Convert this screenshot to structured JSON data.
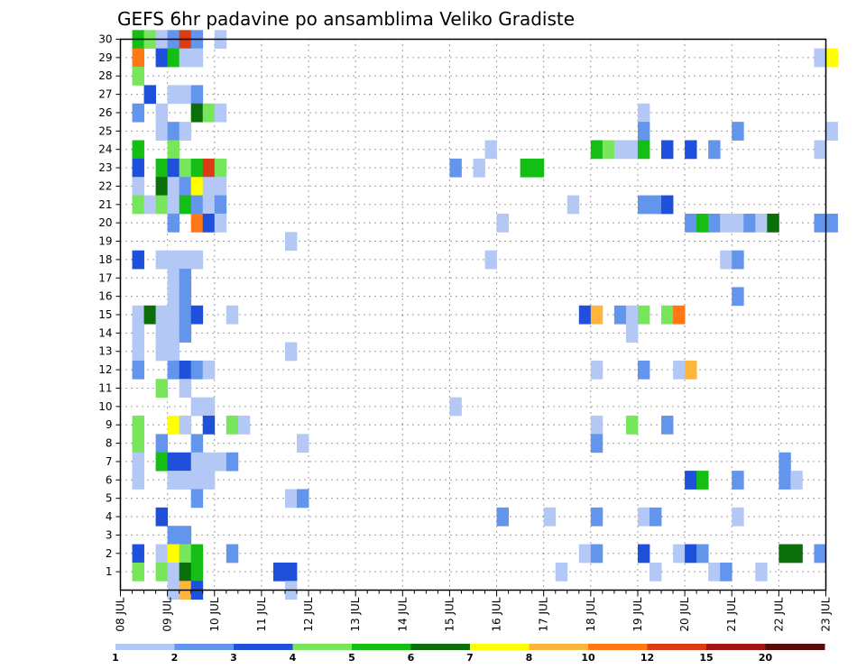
{
  "chart_data": {
    "type": "heatmap",
    "title": "GEFS 6hr padavine po ansamblima Veliko Gradiste",
    "xlabel": "",
    "ylabel": "",
    "x_ticks": [
      "08 JUL",
      "09 JUL",
      "10 JUL",
      "11 JUL",
      "12 JUL",
      "13 JUL",
      "14 JUL",
      "15 JUL",
      "16 JUL",
      "17 JUL",
      "18 JUL",
      "19 JUL",
      "20 JUL",
      "21 JUL",
      "22 JUL",
      "23 JUL"
    ],
    "y_ticks": [
      "1",
      "2",
      "3",
      "4",
      "5",
      "6",
      "7",
      "8",
      "9",
      "10",
      "11",
      "12",
      "13",
      "14",
      "15",
      "16",
      "17",
      "18",
      "19",
      "20",
      "21",
      "22",
      "23",
      "24",
      "25",
      "26",
      "27",
      "28",
      "29",
      "30"
    ],
    "xlim": [
      0,
      60
    ],
    "ylim": [
      0,
      30
    ],
    "grid": true,
    "legend_position": "bottom",
    "color_levels": [
      "1",
      "2",
      "3",
      "4",
      "5",
      "6",
      "7",
      "8",
      "10",
      "12",
      "15",
      "20"
    ],
    "colors": [
      "#b4c8f5",
      "#6495ed",
      "#1e50dc",
      "#78e65a",
      "#14be14",
      "#0a6e0a",
      "#ffff00",
      "#ffb43c",
      "#ff7814",
      "#dc3c14",
      "#a01414",
      "#5a0a0a"
    ],
    "cells": [
      [
        1,
        30,
        5
      ],
      [
        2,
        30,
        4
      ],
      [
        3,
        30,
        1
      ],
      [
        4,
        30,
        2
      ],
      [
        5,
        30,
        10
      ],
      [
        6,
        30,
        2
      ],
      [
        8,
        30,
        1
      ],
      [
        1,
        29,
        9
      ],
      [
        3,
        29,
        3
      ],
      [
        4,
        29,
        5
      ],
      [
        5,
        29,
        1
      ],
      [
        6,
        29,
        1
      ],
      [
        59,
        29,
        1
      ],
      [
        60,
        29,
        7
      ],
      [
        1,
        28,
        4
      ],
      [
        2,
        27,
        3
      ],
      [
        4,
        27,
        1
      ],
      [
        5,
        27,
        1
      ],
      [
        6,
        27,
        2
      ],
      [
        1,
        26,
        2
      ],
      [
        3,
        26,
        1
      ],
      [
        6,
        26,
        6
      ],
      [
        7,
        26,
        4
      ],
      [
        8,
        26,
        1
      ],
      [
        44,
        26,
        1
      ],
      [
        3,
        25,
        1
      ],
      [
        4,
        25,
        2
      ],
      [
        5,
        25,
        1
      ],
      [
        44,
        25,
        2
      ],
      [
        52,
        25,
        2
      ],
      [
        60,
        25,
        1
      ],
      [
        1,
        24,
        5
      ],
      [
        4,
        24,
        4
      ],
      [
        31,
        24,
        1
      ],
      [
        40,
        24,
        5
      ],
      [
        41,
        24,
        4
      ],
      [
        42,
        24,
        1
      ],
      [
        43,
        24,
        1
      ],
      [
        44,
        24,
        5
      ],
      [
        46,
        24,
        3
      ],
      [
        48,
        24,
        3
      ],
      [
        50,
        24,
        2
      ],
      [
        59,
        24,
        1
      ],
      [
        1,
        23,
        3
      ],
      [
        3,
        23,
        5
      ],
      [
        4,
        23,
        3
      ],
      [
        5,
        23,
        4
      ],
      [
        6,
        23,
        5
      ],
      [
        7,
        23,
        10
      ],
      [
        8,
        23,
        4
      ],
      [
        28,
        23,
        2
      ],
      [
        30,
        23,
        1
      ],
      [
        34,
        23,
        5
      ],
      [
        35,
        23,
        5
      ],
      [
        1,
        22,
        1
      ],
      [
        3,
        22,
        6
      ],
      [
        4,
        22,
        1
      ],
      [
        5,
        22,
        2
      ],
      [
        6,
        22,
        7
      ],
      [
        7,
        22,
        1
      ],
      [
        8,
        22,
        1
      ],
      [
        1,
        21,
        4
      ],
      [
        2,
        21,
        1
      ],
      [
        3,
        21,
        4
      ],
      [
        4,
        21,
        1
      ],
      [
        5,
        21,
        5
      ],
      [
        6,
        21,
        2
      ],
      [
        7,
        21,
        1
      ],
      [
        8,
        21,
        2
      ],
      [
        38,
        21,
        1
      ],
      [
        44,
        21,
        2
      ],
      [
        45,
        21,
        2
      ],
      [
        46,
        21,
        3
      ],
      [
        4,
        20,
        2
      ],
      [
        6,
        20,
        9
      ],
      [
        7,
        20,
        3
      ],
      [
        8,
        20,
        1
      ],
      [
        32,
        20,
        1
      ],
      [
        48,
        20,
        2
      ],
      [
        49,
        20,
        5
      ],
      [
        50,
        20,
        2
      ],
      [
        51,
        20,
        1
      ],
      [
        52,
        20,
        1
      ],
      [
        53,
        20,
        2
      ],
      [
        54,
        20,
        1
      ],
      [
        55,
        20,
        6
      ],
      [
        59,
        20,
        2
      ],
      [
        60,
        20,
        2
      ],
      [
        14,
        19,
        1
      ],
      [
        1,
        18,
        3
      ],
      [
        3,
        18,
        1
      ],
      [
        4,
        18,
        1
      ],
      [
        5,
        18,
        1
      ],
      [
        6,
        18,
        1
      ],
      [
        31,
        18,
        1
      ],
      [
        51,
        18,
        1
      ],
      [
        52,
        18,
        2
      ],
      [
        4,
        17,
        1
      ],
      [
        5,
        17,
        2
      ],
      [
        4,
        16,
        1
      ],
      [
        5,
        16,
        2
      ],
      [
        52,
        16,
        2
      ],
      [
        1,
        15,
        1
      ],
      [
        2,
        15,
        6
      ],
      [
        3,
        15,
        1
      ],
      [
        4,
        15,
        1
      ],
      [
        5,
        15,
        2
      ],
      [
        6,
        15,
        3
      ],
      [
        9,
        15,
        1
      ],
      [
        39,
        15,
        3
      ],
      [
        40,
        15,
        8
      ],
      [
        42,
        15,
        2
      ],
      [
        43,
        15,
        1
      ],
      [
        44,
        15,
        4
      ],
      [
        46,
        15,
        4
      ],
      [
        47,
        15,
        9
      ],
      [
        1,
        14,
        1
      ],
      [
        3,
        14,
        1
      ],
      [
        4,
        14,
        1
      ],
      [
        5,
        14,
        2
      ],
      [
        43,
        14,
        1
      ],
      [
        1,
        13,
        1
      ],
      [
        3,
        13,
        1
      ],
      [
        4,
        13,
        1
      ],
      [
        14,
        13,
        1
      ],
      [
        1,
        12,
        2
      ],
      [
        4,
        12,
        2
      ],
      [
        5,
        12,
        3
      ],
      [
        6,
        12,
        2
      ],
      [
        7,
        12,
        1
      ],
      [
        40,
        12,
        1
      ],
      [
        44,
        12,
        2
      ],
      [
        47,
        12,
        1
      ],
      [
        48,
        12,
        8
      ],
      [
        3,
        11,
        4
      ],
      [
        5,
        11,
        1
      ],
      [
        6,
        10,
        1
      ],
      [
        7,
        10,
        1
      ],
      [
        28,
        10,
        1
      ],
      [
        1,
        9,
        4
      ],
      [
        4,
        9,
        7
      ],
      [
        5,
        9,
        1
      ],
      [
        7,
        9,
        3
      ],
      [
        9,
        9,
        4
      ],
      [
        10,
        9,
        1
      ],
      [
        40,
        9,
        1
      ],
      [
        43,
        9,
        4
      ],
      [
        46,
        9,
        2
      ],
      [
        1,
        8,
        4
      ],
      [
        3,
        8,
        2
      ],
      [
        6,
        8,
        2
      ],
      [
        15,
        8,
        1
      ],
      [
        40,
        8,
        2
      ],
      [
        1,
        7,
        1
      ],
      [
        3,
        7,
        5
      ],
      [
        4,
        7,
        3
      ],
      [
        5,
        7,
        3
      ],
      [
        6,
        7,
        1
      ],
      [
        7,
        7,
        1
      ],
      [
        8,
        7,
        1
      ],
      [
        9,
        7,
        2
      ],
      [
        56,
        7,
        2
      ],
      [
        1,
        6,
        1
      ],
      [
        4,
        6,
        1
      ],
      [
        5,
        6,
        1
      ],
      [
        6,
        6,
        1
      ],
      [
        7,
        6,
        1
      ],
      [
        48,
        6,
        3
      ],
      [
        49,
        6,
        5
      ],
      [
        52,
        6,
        2
      ],
      [
        56,
        6,
        2
      ],
      [
        57,
        6,
        1
      ],
      [
        6,
        5,
        2
      ],
      [
        14,
        5,
        1
      ],
      [
        15,
        5,
        2
      ],
      [
        3,
        4,
        3
      ],
      [
        32,
        4,
        2
      ],
      [
        36,
        4,
        1
      ],
      [
        40,
        4,
        2
      ],
      [
        44,
        4,
        1
      ],
      [
        45,
        4,
        2
      ],
      [
        52,
        4,
        1
      ],
      [
        4,
        3,
        2
      ],
      [
        5,
        3,
        2
      ],
      [
        1,
        2,
        3
      ],
      [
        3,
        2,
        1
      ],
      [
        4,
        2,
        7
      ],
      [
        5,
        2,
        4
      ],
      [
        6,
        2,
        5
      ],
      [
        9,
        2,
        2
      ],
      [
        39,
        2,
        1
      ],
      [
        40,
        2,
        2
      ],
      [
        44,
        2,
        3
      ],
      [
        47,
        2,
        1
      ],
      [
        48,
        2,
        3
      ],
      [
        49,
        2,
        2
      ],
      [
        56,
        2,
        6
      ],
      [
        57,
        2,
        6
      ],
      [
        59,
        2,
        2
      ],
      [
        1,
        1,
        4
      ],
      [
        3,
        1,
        4
      ],
      [
        4,
        1,
        1
      ],
      [
        5,
        1,
        6
      ],
      [
        6,
        1,
        5
      ],
      [
        13,
        1,
        3
      ],
      [
        14,
        1,
        3
      ],
      [
        37,
        1,
        1
      ],
      [
        45,
        1,
        1
      ],
      [
        50,
        1,
        1
      ],
      [
        51,
        1,
        2
      ],
      [
        54,
        1,
        1
      ],
      [
        4,
        0,
        1
      ],
      [
        5,
        0,
        8
      ],
      [
        6,
        0,
        3
      ],
      [
        14,
        0,
        1
      ]
    ]
  }
}
